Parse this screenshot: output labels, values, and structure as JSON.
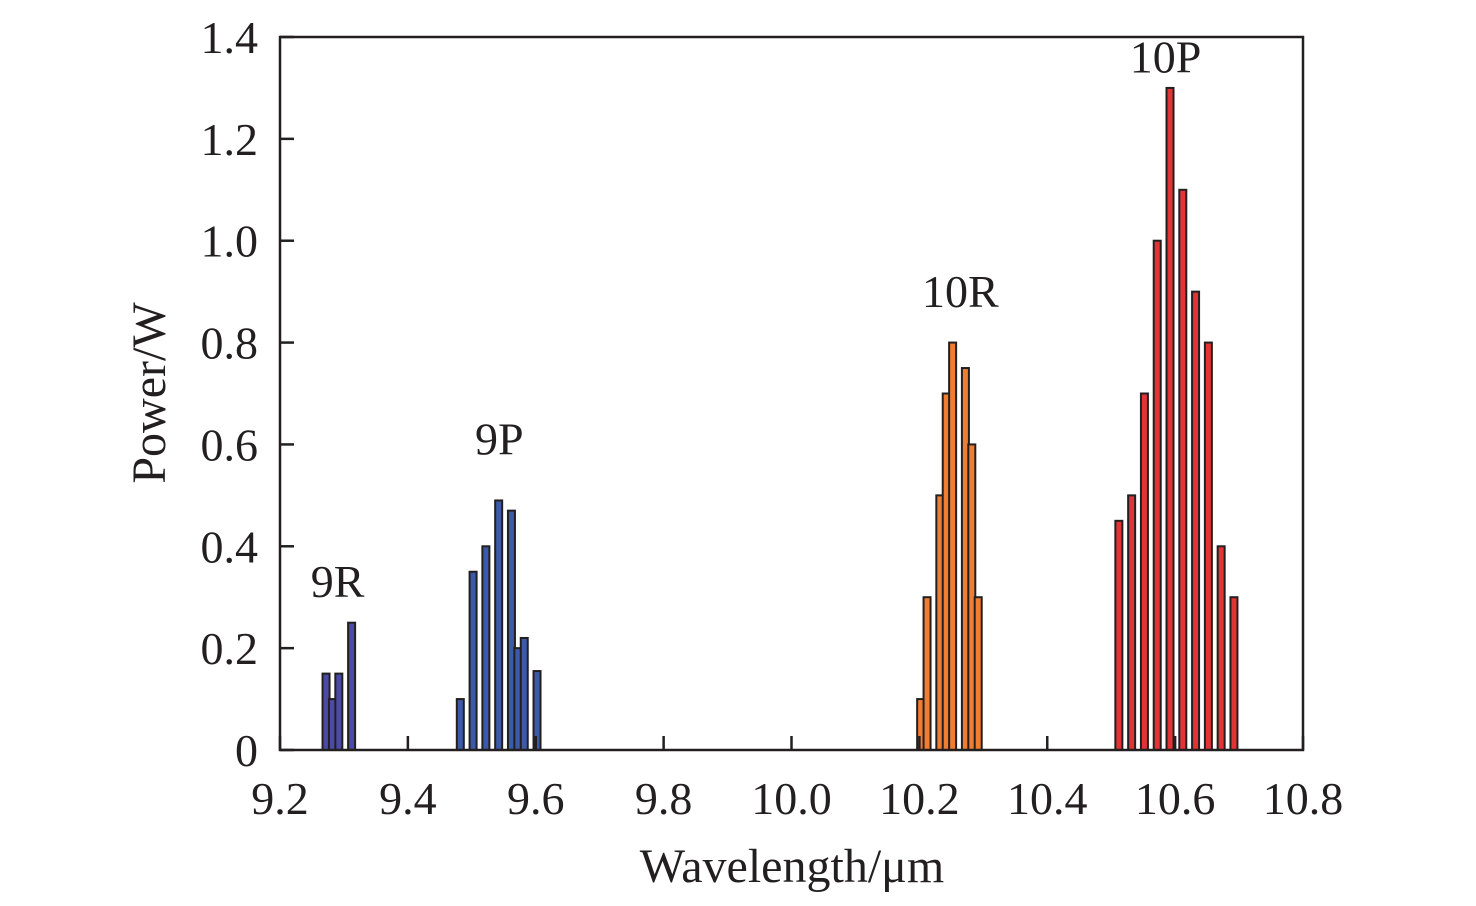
{
  "chart_data": {
    "type": "bar",
    "title": "",
    "xlabel": "Wavelength/μm",
    "ylabel": "Power/W",
    "xlim": [
      9.2,
      10.8
    ],
    "ylim": [
      0,
      1.4
    ],
    "xticks": [
      9.2,
      9.4,
      9.6,
      9.8,
      10.0,
      10.2,
      10.4,
      10.6,
      10.8
    ],
    "xtick_labels": [
      "9.2",
      "9.4",
      "9.6",
      "9.8",
      "10.0",
      "10.2",
      "10.4",
      "10.6",
      "10.8"
    ],
    "yticks": [
      0,
      0.2,
      0.4,
      0.6,
      0.8,
      1.0,
      1.2,
      1.4
    ],
    "ytick_labels": [
      "0",
      "0.2",
      "0.4",
      "0.6",
      "0.8",
      "1.0",
      "1.2",
      "1.4"
    ],
    "grid": false,
    "series": [
      {
        "name": "9R",
        "color": "#4b4aa8",
        "label_pos": {
          "x": 9.29,
          "y": 0.3
        },
        "points": [
          {
            "x": 9.272,
            "y": 0.15
          },
          {
            "x": 9.282,
            "y": 0.1
          },
          {
            "x": 9.292,
            "y": 0.15
          },
          {
            "x": 9.312,
            "y": 0.25
          }
        ]
      },
      {
        "name": "9P",
        "color": "#3b5ba8",
        "label_pos": {
          "x": 9.543,
          "y": 0.58
        },
        "points": [
          {
            "x": 9.482,
            "y": 0.1
          },
          {
            "x": 9.502,
            "y": 0.35
          },
          {
            "x": 9.522,
            "y": 0.4
          },
          {
            "x": 9.542,
            "y": 0.49
          },
          {
            "x": 9.562,
            "y": 0.47
          },
          {
            "x": 9.572,
            "y": 0.2
          },
          {
            "x": 9.582,
            "y": 0.22
          },
          {
            "x": 9.602,
            "y": 0.155
          }
        ]
      },
      {
        "name": "10R",
        "color": "#ef7d32",
        "label_pos": {
          "x": 10.264,
          "y": 0.87
        },
        "points": [
          {
            "x": 10.202,
            "y": 0.1
          },
          {
            "x": 10.212,
            "y": 0.3
          },
          {
            "x": 10.232,
            "y": 0.5
          },
          {
            "x": 10.242,
            "y": 0.7
          },
          {
            "x": 10.252,
            "y": 0.8
          },
          {
            "x": 10.272,
            "y": 0.75
          },
          {
            "x": 10.282,
            "y": 0.6
          },
          {
            "x": 10.292,
            "y": 0.3
          }
        ]
      },
      {
        "name": "10P",
        "color": "#e23434",
        "label_pos": {
          "x": 10.585,
          "y": 1.33
        },
        "points": [
          {
            "x": 10.512,
            "y": 0.45
          },
          {
            "x": 10.532,
            "y": 0.5
          },
          {
            "x": 10.552,
            "y": 0.7
          },
          {
            "x": 10.572,
            "y": 1.0
          },
          {
            "x": 10.592,
            "y": 1.3
          },
          {
            "x": 10.612,
            "y": 1.1
          },
          {
            "x": 10.632,
            "y": 0.9
          },
          {
            "x": 10.652,
            "y": 0.8
          },
          {
            "x": 10.672,
            "y": 0.4
          },
          {
            "x": 10.692,
            "y": 0.3
          }
        ]
      }
    ]
  }
}
